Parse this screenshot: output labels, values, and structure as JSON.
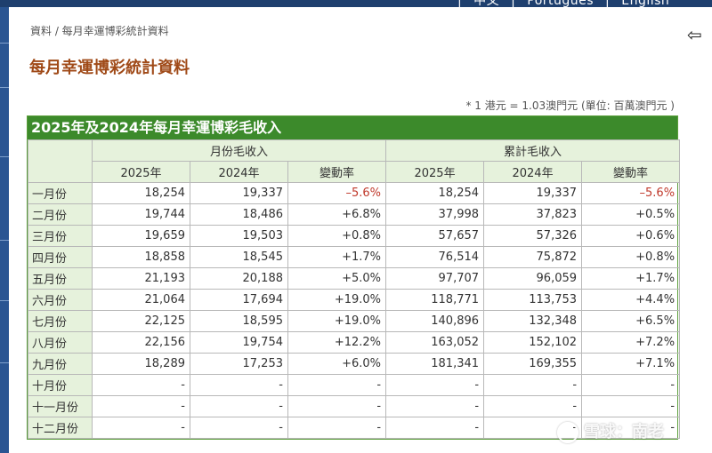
{
  "top_nav": {
    "items": [
      "中文",
      "Português",
      "English"
    ],
    "separator": "|"
  },
  "breadcrumb": "資料 / 每月幸運博彩統計資料",
  "page_title": "每月幸運博彩統計資料",
  "note": "* 1 港元 = 1.03澳門元 (單位: 百萬澳門元 )",
  "table": {
    "caption": "2025年及2024年每月幸運博彩毛收入",
    "group_headers": [
      "月份毛收入",
      "累計毛收入"
    ],
    "sub_headers": [
      "2025年",
      "2024年",
      "變動率",
      "2025年",
      "2024年",
      "變動率"
    ],
    "rows": [
      {
        "month": "一月份",
        "cells": [
          "18,254",
          "19,337",
          "–5.6%",
          "18,254",
          "19,337",
          "–5.6%"
        ]
      },
      {
        "month": "二月份",
        "cells": [
          "19,744",
          "18,486",
          "+6.8%",
          "37,998",
          "37,823",
          "+0.5%"
        ]
      },
      {
        "month": "三月份",
        "cells": [
          "19,659",
          "19,503",
          "+0.8%",
          "57,657",
          "57,326",
          "+0.6%"
        ]
      },
      {
        "month": "四月份",
        "cells": [
          "18,858",
          "18,545",
          "+1.7%",
          "76,514",
          "75,872",
          "+0.8%"
        ]
      },
      {
        "month": "五月份",
        "cells": [
          "21,193",
          "20,188",
          "+5.0%",
          "97,707",
          "96,059",
          "+1.7%"
        ]
      },
      {
        "month": "六月份",
        "cells": [
          "21,064",
          "17,694",
          "+19.0%",
          "118,771",
          "113,753",
          "+4.4%"
        ]
      },
      {
        "month": "七月份",
        "cells": [
          "22,125",
          "18,595",
          "+19.0%",
          "140,896",
          "132,348",
          "+6.5%"
        ]
      },
      {
        "month": "八月份",
        "cells": [
          "22,156",
          "19,754",
          "+12.2%",
          "163,052",
          "152,102",
          "+7.2%"
        ]
      },
      {
        "month": "九月份",
        "cells": [
          "18,289",
          "17,253",
          "+6.0%",
          "181,341",
          "169,355",
          "+7.1%"
        ]
      },
      {
        "month": "十月份",
        "cells": [
          "-",
          "-",
          "-",
          "-",
          "-",
          "-"
        ]
      },
      {
        "month": "十一月份",
        "cells": [
          "-",
          "-",
          "-",
          "-",
          "-",
          "-"
        ]
      },
      {
        "month": "十二月份",
        "cells": [
          "-",
          "-",
          "-",
          "-",
          "-",
          "-"
        ]
      }
    ]
  },
  "watermark": "雪球：南老",
  "colors": {
    "header_bar": "#1e3f6e",
    "caption_bg": "#3c8a2b",
    "header_cell_bg": "#e6f2dc",
    "title_text": "#a04a18",
    "negative_text": "#c0392b"
  },
  "icons": {
    "back": "arrow-left-icon"
  }
}
